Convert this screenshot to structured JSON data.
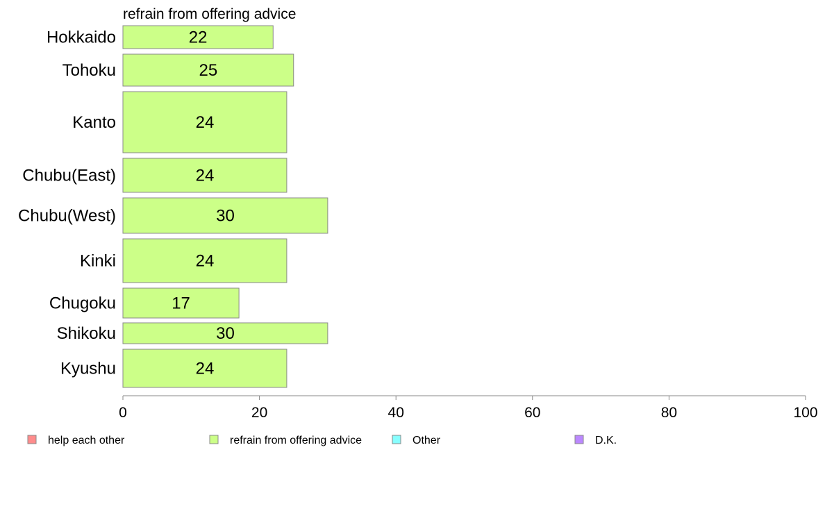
{
  "chart_data": {
    "type": "bar",
    "orientation": "horizontal",
    "title": "refrain from offering advice",
    "categories": [
      "Hokkaido",
      "Tohoku",
      "Kanto",
      "Chubu(East)",
      "Chubu(West)",
      "Kinki",
      "Chugoku",
      "Shikoku",
      "Kyushu"
    ],
    "series": [
      {
        "name": "refrain from offering advice",
        "values": [
          22,
          25,
          24,
          24,
          30,
          24,
          17,
          30,
          24
        ],
        "color": "#CCFF88"
      }
    ],
    "xlim": [
      0,
      100
    ],
    "xticks": [
      0,
      20,
      40,
      60,
      80,
      100
    ],
    "grid": false,
    "legend_position": "bottom",
    "legend": [
      {
        "label": "help each other",
        "color": "#FF8C8C"
      },
      {
        "label": "refrain from offering advice",
        "color": "#CCFF88"
      },
      {
        "label": "Other",
        "color": "#88FFFF"
      },
      {
        "label": "D.K.",
        "color": "#BB88FF"
      }
    ]
  }
}
